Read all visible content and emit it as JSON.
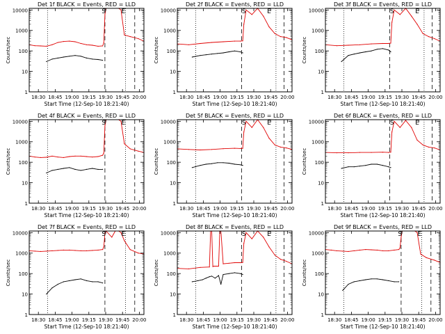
{
  "figure": {
    "ylabel": "Counts/sec",
    "xlabel": "Start Time (12-Sep-10 18:21:40)",
    "xticks": [
      "18:30",
      "18:45",
      "19:00",
      "19:15",
      "19:30",
      "19:45",
      "20:00"
    ],
    "yticks": [
      "1",
      "10",
      "100",
      "1000",
      "10000"
    ],
    "series_colors": {
      "events": "#000000",
      "lld": "#e00000"
    },
    "marker_S": "S",
    "marker_E": "E"
  },
  "chart_data": [
    {
      "type": "line",
      "title": "Det 1f BLACK = Events, RED = LLD",
      "ylabel": "Counts/sec",
      "xlabel": "Start Time (12-Sep-10 18:21:40)",
      "ylim": [
        1,
        12000
      ],
      "yscale": "log",
      "x_range_min": [
        0,
        100
      ],
      "markers": [
        {
          "label": "S",
          "x": 65
        },
        {
          "label": "E",
          "x": 82
        }
      ],
      "vlines_dotted": [
        16,
        84
      ],
      "vlines_dashed": [
        66,
        92
      ],
      "series": [
        {
          "key": "events",
          "x": [
            15,
            20,
            25,
            30,
            35,
            40,
            45,
            50,
            55,
            60,
            64
          ],
          "y": [
            30,
            40,
            45,
            50,
            55,
            60,
            55,
            45,
            40,
            38,
            35
          ],
          "gap_after": 64
        },
        {
          "key": "lld",
          "x": [
            0,
            5,
            10,
            15,
            20,
            25,
            30,
            35,
            40,
            45,
            50,
            55,
            60,
            64,
            65,
            66,
            67,
            78,
            80,
            83,
            88,
            95,
            100
          ],
          "y": [
            200,
            180,
            175,
            170,
            200,
            260,
            290,
            300,
            280,
            230,
            200,
            190,
            170,
            175,
            250,
            6000,
            12000,
            12000,
            10000,
            600,
            500,
            400,
            300
          ]
        }
      ]
    },
    {
      "type": "line",
      "title": "Det 2f BLACK = Events, RED = LLD",
      "ylabel": "Counts/sec",
      "xlabel": "Start Time (12-Sep-10 18:21:40)",
      "ylim": [
        1,
        12000
      ],
      "yscale": "log",
      "x_range_min": [
        0,
        100
      ],
      "markers": [
        {
          "label": "S",
          "x": 58
        },
        {
          "label": "E",
          "x": 80
        }
      ],
      "vlines_dotted": [
        16,
        86
      ],
      "vlines_dashed": [
        56,
        93
      ],
      "series": [
        {
          "key": "events",
          "x": [
            13,
            20,
            25,
            30,
            35,
            40,
            45,
            50,
            55,
            57
          ],
          "y": [
            50,
            60,
            65,
            70,
            75,
            80,
            90,
            100,
            90,
            80
          ]
        },
        {
          "key": "lld",
          "x": [
            0,
            10,
            20,
            30,
            40,
            50,
            55,
            57,
            58,
            60,
            65,
            70,
            75,
            80,
            85,
            90,
            95,
            100
          ],
          "y": [
            220,
            200,
            230,
            260,
            280,
            300,
            300,
            310,
            2000,
            10000,
            6000,
            12000,
            5000,
            1500,
            700,
            500,
            450,
            350
          ]
        }
      ]
    },
    {
      "type": "line",
      "title": "Det 3f BLACK = Events, RED = LLD",
      "ylabel": "Counts/sec",
      "xlabel": "Start Time (12-Sep-10 18:21:40)",
      "ylim": [
        1,
        12000
      ],
      "yscale": "log",
      "x_range_min": [
        0,
        100
      ],
      "markers": [
        {
          "label": "S",
          "x": 58
        },
        {
          "label": "E",
          "x": 80
        }
      ],
      "vlines_dotted": [
        16,
        86
      ],
      "vlines_dashed": [
        56,
        93
      ],
      "series": [
        {
          "key": "events",
          "x": [
            14,
            20,
            25,
            30,
            35,
            40,
            45,
            50,
            55,
            57
          ],
          "y": [
            30,
            60,
            70,
            80,
            90,
            100,
            120,
            130,
            110,
            90
          ]
        },
        {
          "key": "lld",
          "x": [
            0,
            10,
            20,
            30,
            40,
            50,
            55,
            57,
            58,
            60,
            65,
            70,
            75,
            80,
            85,
            90,
            95,
            100
          ],
          "y": [
            200,
            180,
            190,
            200,
            220,
            230,
            230,
            240,
            2500,
            10000,
            6000,
            12000,
            5000,
            2000,
            700,
            500,
            400,
            300
          ]
        }
      ]
    },
    {
      "type": "line",
      "title": "Det 4f BLACK = Events, RED = LLD",
      "ylabel": "Counts/sec",
      "xlabel": "Start Time (12-Sep-10 18:21:40)",
      "ylim": [
        1,
        12000
      ],
      "yscale": "log",
      "x_range_min": [
        0,
        100
      ],
      "markers": [
        {
          "label": "S",
          "x": 65
        },
        {
          "label": "E",
          "x": 82
        }
      ],
      "vlines_dotted": [
        16,
        84
      ],
      "vlines_dashed": [
        66,
        92
      ],
      "series": [
        {
          "key": "events",
          "x": [
            15,
            20,
            25,
            30,
            35,
            40,
            45,
            50,
            55,
            60,
            64
          ],
          "y": [
            30,
            40,
            45,
            50,
            55,
            45,
            40,
            45,
            50,
            45,
            45
          ]
        },
        {
          "key": "lld",
          "x": [
            0,
            5,
            10,
            15,
            20,
            25,
            30,
            35,
            40,
            45,
            50,
            55,
            60,
            64,
            65,
            66,
            67,
            78,
            80,
            83,
            88,
            95,
            100
          ],
          "y": [
            200,
            180,
            170,
            175,
            200,
            180,
            170,
            190,
            200,
            200,
            190,
            180,
            190,
            220,
            280,
            6000,
            12000,
            12000,
            10000,
            800,
            450,
            350,
            300
          ]
        }
      ]
    },
    {
      "type": "line",
      "title": "Det 5f BLACK = Events, RED = LLD",
      "ylabel": "Counts/sec",
      "xlabel": "Start Time (12-Sep-10 18:21:40)",
      "ylim": [
        1,
        12000
      ],
      "yscale": "log",
      "x_range_min": [
        0,
        100
      ],
      "markers": [
        {
          "label": "S",
          "x": 58
        },
        {
          "label": "E",
          "x": 80
        }
      ],
      "vlines_dotted": [
        16,
        86
      ],
      "vlines_dashed": [
        56,
        93
      ],
      "series": [
        {
          "key": "events",
          "x": [
            13,
            20,
            25,
            30,
            35,
            40,
            45,
            50,
            55,
            57
          ],
          "y": [
            55,
            70,
            80,
            85,
            95,
            95,
            90,
            80,
            75,
            70
          ]
        },
        {
          "key": "lld",
          "x": [
            0,
            10,
            20,
            30,
            40,
            50,
            55,
            57,
            58,
            60,
            65,
            70,
            75,
            80,
            85,
            90,
            95,
            100
          ],
          "y": [
            450,
            420,
            400,
            420,
            460,
            480,
            470,
            480,
            3000,
            10000,
            5000,
            12000,
            5000,
            1500,
            700,
            550,
            500,
            420
          ]
        }
      ]
    },
    {
      "type": "line",
      "title": "Det 6f BLACK = Events, RED = LLD",
      "ylabel": "Counts/sec",
      "xlabel": "Start Time (12-Sep-10 18:21:40)",
      "ylim": [
        1,
        12000
      ],
      "yscale": "log",
      "x_range_min": [
        0,
        100
      ],
      "markers": [
        {
          "label": "S",
          "x": 58
        },
        {
          "label": "E",
          "x": 80
        }
      ],
      "vlines_dotted": [
        16,
        86
      ],
      "vlines_dashed": [
        56,
        93
      ],
      "series": [
        {
          "key": "events",
          "x": [
            14,
            20,
            25,
            30,
            35,
            40,
            45,
            50,
            55,
            57
          ],
          "y": [
            50,
            60,
            60,
            65,
            70,
            80,
            80,
            70,
            60,
            55
          ]
        },
        {
          "key": "lld",
          "x": [
            0,
            10,
            20,
            30,
            40,
            50,
            55,
            57,
            58,
            60,
            65,
            70,
            75,
            80,
            85,
            90,
            95,
            100
          ],
          "y": [
            300,
            290,
            290,
            300,
            300,
            310,
            300,
            310,
            3000,
            10000,
            5000,
            11000,
            5000,
            1200,
            700,
            550,
            500,
            400
          ]
        }
      ]
    },
    {
      "type": "line",
      "title": "Det 7f BLACK = Events, RED = LLD",
      "ylabel": "Counts/sec",
      "xlabel": "Start Time (12-Sep-10 18:21:40)",
      "ylim": [
        1,
        12000
      ],
      "yscale": "log",
      "x_range_min": [
        0,
        100
      ],
      "markers": [
        {
          "label": "S",
          "x": 65
        },
        {
          "label": "E",
          "x": 82
        }
      ],
      "vlines_dotted": [
        16,
        84
      ],
      "vlines_dashed": [
        66,
        92
      ],
      "series": [
        {
          "key": "events",
          "x": [
            15,
            20,
            25,
            30,
            35,
            40,
            45,
            50,
            55,
            60,
            64
          ],
          "y": [
            10,
            20,
            30,
            40,
            45,
            50,
            55,
            45,
            40,
            40,
            35
          ]
        },
        {
          "key": "lld",
          "x": [
            0,
            5,
            10,
            15,
            20,
            25,
            30,
            35,
            40,
            45,
            50,
            55,
            60,
            64,
            65,
            66,
            67,
            72,
            75,
            78,
            80,
            83,
            88,
            95,
            100
          ],
          "y": [
            1300,
            1250,
            1200,
            1250,
            1300,
            1350,
            1400,
            1400,
            1350,
            1300,
            1300,
            1350,
            1400,
            1500,
            2000,
            9000,
            12000,
            6000,
            12000,
            12000,
            10000,
            4000,
            1500,
            1000,
            900
          ]
        }
      ]
    },
    {
      "type": "line",
      "title": "Det 8f BLACK = Events, RED = LLD",
      "ylabel": "Counts/sec",
      "xlabel": "Start Time (12-Sep-10 18:21:40)",
      "ylim": [
        1,
        12000
      ],
      "yscale": "log",
      "x_range_min": [
        0,
        100
      ],
      "markers": [
        {
          "label": "S",
          "x": 58
        },
        {
          "label": "E",
          "x": 80
        }
      ],
      "vlines_dotted": [
        16,
        86
      ],
      "vlines_dashed": [
        56,
        93
      ],
      "series": [
        {
          "key": "events",
          "x": [
            13,
            18,
            22,
            25,
            28,
            30,
            33,
            36,
            38,
            40,
            45,
            50,
            55,
            57
          ],
          "y": [
            40,
            45,
            50,
            60,
            70,
            75,
            60,
            80,
            30,
            90,
            100,
            110,
            100,
            90
          ]
        },
        {
          "key": "lld",
          "x": [
            0,
            10,
            20,
            28,
            29,
            30,
            31,
            32,
            36,
            37,
            38,
            40,
            45,
            50,
            55,
            57,
            58,
            60,
            65,
            70,
            75,
            80,
            85,
            90,
            95,
            100
          ],
          "y": [
            180,
            170,
            200,
            210,
            12000,
            12000,
            220,
            230,
            230,
            12000,
            12000,
            300,
            320,
            340,
            340,
            350,
            3000,
            10000,
            5000,
            12000,
            6000,
            2000,
            800,
            500,
            400,
            300
          ]
        }
      ]
    },
    {
      "type": "line",
      "title": "Det 9f BLACK = Events, RED = LLD",
      "ylabel": "Counts/sec",
      "xlabel": "Start Time (12-Sep-10 18:21:40)",
      "ylim": [
        1,
        12000
      ],
      "yscale": "log",
      "x_range_min": [
        0,
        100
      ],
      "markers": [
        {
          "label": "S",
          "x": 65
        },
        {
          "label": "E",
          "x": 82
        }
      ],
      "vlines_dotted": [
        16,
        84
      ],
      "vlines_dashed": [
        66,
        92
      ],
      "series": [
        {
          "key": "events",
          "x": [
            15,
            20,
            25,
            30,
            35,
            40,
            45,
            50,
            55,
            60,
            64
          ],
          "y": [
            15,
            30,
            40,
            45,
            50,
            55,
            55,
            50,
            45,
            40,
            40
          ]
        },
        {
          "key": "lld",
          "x": [
            0,
            5,
            10,
            15,
            20,
            25,
            30,
            35,
            40,
            45,
            50,
            55,
            60,
            64,
            65,
            66,
            67,
            78,
            80,
            83,
            88,
            95,
            100
          ],
          "y": [
            1500,
            1400,
            1300,
            1250,
            1200,
            1300,
            1400,
            1500,
            1450,
            1400,
            1300,
            1300,
            1400,
            1500,
            1800,
            6000,
            12000,
            12000,
            10000,
            900,
            600,
            450,
            350
          ]
        }
      ]
    }
  ]
}
